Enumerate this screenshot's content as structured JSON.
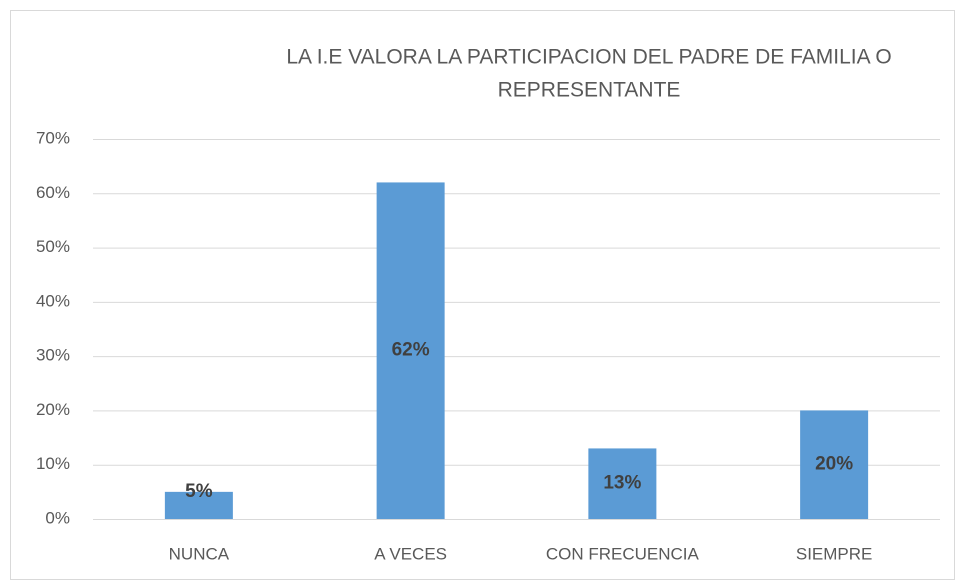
{
  "chart_data": {
    "type": "bar",
    "title": [
      "LA I.E VALORA LA PARTICIPACION DEL PADRE DE FAMILIA O",
      "REPRESENTANTE"
    ],
    "categories": [
      "NUNCA",
      "A VECES",
      "CON FRECUENCIA",
      "SIEMPRE"
    ],
    "values": [
      5,
      62,
      13,
      20
    ],
    "value_labels": [
      "5%",
      "62%",
      "13%",
      "20%"
    ],
    "color": "#5b9bd5",
    "ylim": [
      0,
      70
    ],
    "yticks": [
      {
        "value": 0,
        "label": "0%"
      },
      {
        "value": 10,
        "label": "10%"
      },
      {
        "value": 20,
        "label": "20%"
      },
      {
        "value": 30,
        "label": "30%"
      },
      {
        "value": 40,
        "label": "40%"
      },
      {
        "value": 50,
        "label": "50%"
      },
      {
        "value": 60,
        "label": "60%"
      },
      {
        "value": 70,
        "label": "70%"
      }
    ],
    "grid": true
  }
}
